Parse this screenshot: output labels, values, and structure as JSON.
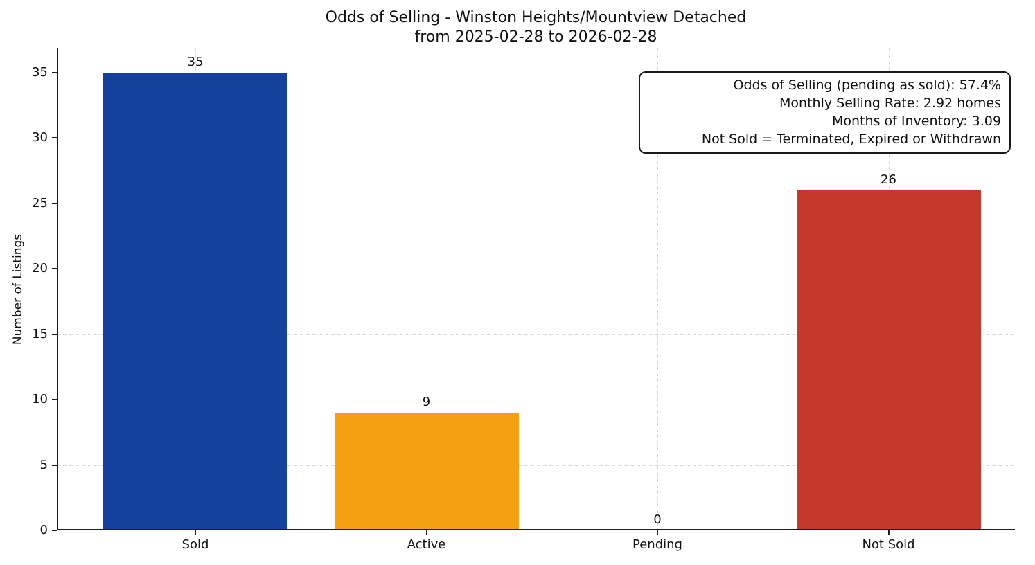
{
  "chart_data": {
    "type": "bar",
    "title": "Odds of Selling - Winston Heights/Mountview Detached",
    "subtitle": "from 2025-02-28 to 2026-02-28",
    "categories": [
      "Sold",
      "Active",
      "Pending",
      "Not Sold"
    ],
    "values": [
      35,
      9,
      0,
      26
    ],
    "value_labels": [
      "35",
      "9",
      "0",
      "26"
    ],
    "bar_colors": [
      "#14419c",
      "#f2a113",
      null,
      "#c33a2c"
    ],
    "xlabel": "",
    "ylabel": "Number of Listings",
    "yticks": [
      0,
      5,
      10,
      15,
      20,
      25,
      30,
      35
    ],
    "ylim": [
      0,
      36.85
    ],
    "grid": "dashed, both axes, light gray",
    "legend": "none",
    "annotation": {
      "lines": [
        "Odds of Selling (pending as sold): 57.4%",
        "Monthly Selling Rate: 2.92 homes",
        "Months of Inventory: 3.09",
        "Not Sold = Terminated, Expired or Withdrawn"
      ]
    }
  }
}
